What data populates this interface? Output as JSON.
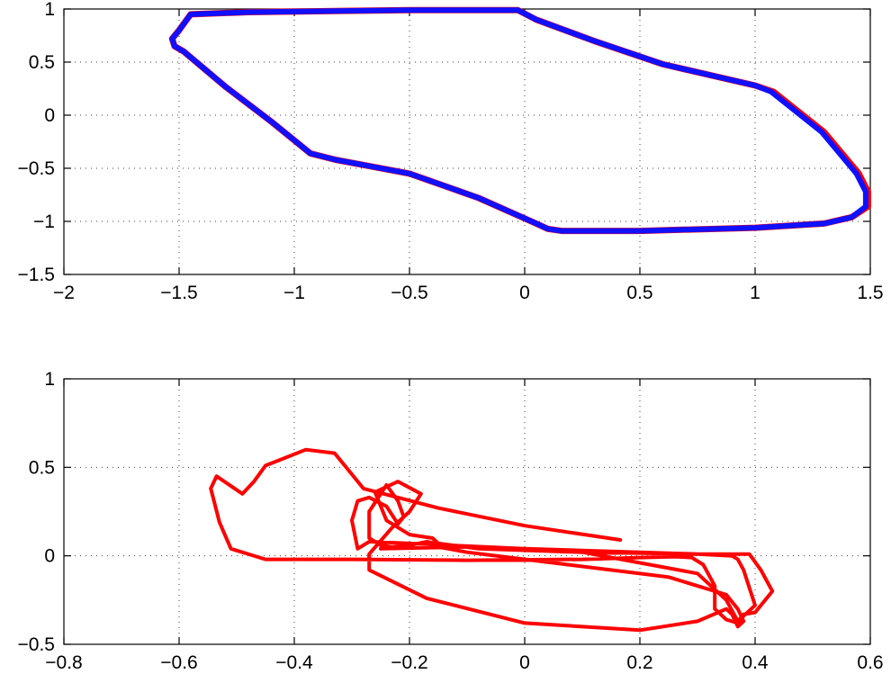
{
  "chart_data": [
    {
      "type": "line",
      "title": "",
      "xlabel": "",
      "ylabel": "",
      "xlim": [
        -2,
        1.5
      ],
      "ylim": [
        -1.5,
        1
      ],
      "xticks": [
        "−2",
        "−1.5",
        "−1",
        "−0.5",
        "0",
        "0.5",
        "1",
        "1.5"
      ],
      "yticks": [
        "−1.5",
        "−1",
        "−0.5",
        "0",
        "0.5",
        "1"
      ],
      "xtick_values": [
        -2,
        -1.5,
        -1,
        -0.5,
        0,
        0.5,
        1,
        1.5
      ],
      "ytick_values": [
        -1.5,
        -1,
        -0.5,
        0,
        0.5,
        1
      ],
      "grid": true,
      "series": [
        {
          "color": "#ff0000",
          "closed": true,
          "x": [
            -1.5,
            -1.53,
            -1.52,
            -1.48,
            -1.3,
            -1.1,
            -0.93,
            -0.82,
            -0.5,
            -0.2,
            0.05,
            0.1,
            0.16,
            0.5,
            1.0,
            1.3,
            1.42,
            1.49,
            1.49,
            1.45,
            1.3,
            1.08,
            1.0,
            0.6,
            0.3,
            0.05,
            -0.03,
            -0.5,
            -1.2,
            -1.45
          ],
          "y": [
            0.8,
            0.72,
            0.65,
            0.6,
            0.27,
            -0.06,
            -0.36,
            -0.42,
            -0.55,
            -0.78,
            -1.02,
            -1.07,
            -1.09,
            -1.09,
            -1.06,
            -1.02,
            -0.96,
            -0.86,
            -0.72,
            -0.55,
            -0.16,
            0.22,
            0.28,
            0.48,
            0.7,
            0.9,
            0.99,
            0.99,
            0.97,
            0.95
          ]
        },
        {
          "color": "#1010ff",
          "closed": true,
          "x": [
            -1.5,
            -1.53,
            -1.52,
            -1.48,
            -1.3,
            -1.1,
            -0.93,
            -0.82,
            -0.5,
            -0.2,
            0.05,
            0.1,
            0.16,
            0.5,
            1.0,
            1.3,
            1.42,
            1.48,
            1.48,
            1.44,
            1.29,
            1.07,
            1.0,
            0.6,
            0.3,
            0.05,
            -0.03,
            -0.5,
            -1.2,
            -1.45
          ],
          "y": [
            0.8,
            0.72,
            0.65,
            0.6,
            0.27,
            -0.06,
            -0.36,
            -0.42,
            -0.55,
            -0.78,
            -1.02,
            -1.07,
            -1.09,
            -1.09,
            -1.06,
            -1.02,
            -0.96,
            -0.86,
            -0.72,
            -0.55,
            -0.16,
            0.22,
            0.28,
            0.48,
            0.7,
            0.9,
            0.99,
            0.99,
            0.97,
            0.95
          ]
        }
      ]
    },
    {
      "type": "line",
      "title": "",
      "xlabel": "",
      "ylabel": "",
      "xlim": [
        -0.8,
        0.6
      ],
      "ylim": [
        -0.5,
        1
      ],
      "xticks": [
        "−0.8",
        "−0.6",
        "−0.4",
        "−0.2",
        "0",
        "0.2",
        "0.4",
        "0.6"
      ],
      "yticks": [
        "−0.5",
        "0",
        "0.5",
        "1"
      ],
      "xtick_values": [
        -0.8,
        -0.6,
        -0.4,
        -0.2,
        0,
        0.2,
        0.4,
        0.6
      ],
      "ytick_values": [
        -0.5,
        0,
        0.5,
        1
      ],
      "grid": true,
      "series": [
        {
          "color": "#ff0000",
          "closed": false,
          "x": [
            0.166,
            0.0,
            -0.15,
            -0.28,
            -0.31,
            -0.33,
            -0.38,
            -0.45,
            -0.47,
            -0.49,
            -0.535,
            -0.545,
            -0.53,
            -0.51,
            -0.45,
            -0.3,
            -0.1,
            0.1,
            0.2,
            0.26,
            0.29,
            0.31,
            0.33,
            0.33,
            0.35,
            0.37,
            0.38,
            0.4,
            0.39,
            0.38,
            0.37,
            0.36,
            0.3,
            0.2,
            0.0,
            -0.2,
            -0.27,
            -0.29,
            -0.3,
            -0.29,
            -0.27,
            -0.24,
            -0.22,
            -0.21,
            -0.22,
            -0.24,
            -0.27,
            -0.27,
            -0.25,
            -0.23,
            -0.2,
            -0.17,
            -0.14,
            -0.15,
            -0.1,
            0.05,
            0.25,
            0.35,
            0.37,
            0.38,
            0.37,
            0.36,
            0.35,
            0.3,
            0.2,
            0.0,
            -0.17,
            -0.27,
            -0.27,
            -0.23,
            -0.2,
            -0.18,
            -0.22,
            -0.26,
            -0.24,
            -0.2,
            -0.16,
            -0.15,
            -0.08,
            0.1,
            0.3,
            0.39,
            0.41,
            0.43,
            0.4,
            0.38,
            0.37,
            0.35,
            0.3,
            0.1,
            -0.1,
            -0.25
          ],
          "y": [
            0.09,
            0.17,
            0.27,
            0.38,
            0.5,
            0.58,
            0.6,
            0.51,
            0.42,
            0.35,
            0.45,
            0.38,
            0.19,
            0.04,
            -0.02,
            -0.02,
            -0.025,
            -0.02,
            -0.01,
            -0.005,
            -0.01,
            -0.05,
            -0.17,
            -0.3,
            -0.36,
            -0.38,
            -0.34,
            -0.28,
            -0.18,
            -0.08,
            -0.02,
            0.0,
            0.01,
            0.02,
            0.04,
            0.07,
            0.08,
            0.04,
            0.2,
            0.31,
            0.33,
            0.28,
            0.18,
            0.22,
            0.31,
            0.4,
            0.25,
            0.1,
            0.06,
            0.05,
            0.06,
            0.08,
            0.06,
            0.05,
            0.02,
            -0.04,
            -0.12,
            -0.22,
            -0.3,
            -0.37,
            -0.4,
            -0.33,
            -0.3,
            -0.37,
            -0.42,
            -0.38,
            -0.24,
            -0.08,
            0.01,
            0.16,
            0.25,
            0.35,
            0.42,
            0.36,
            0.2,
            0.12,
            0.1,
            0.07,
            0.04,
            0.02,
            0.01,
            0.01,
            -0.08,
            -0.2,
            -0.32,
            -0.33,
            -0.37,
            -0.25,
            -0.1,
            0.02,
            0.05,
            0.04
          ]
        }
      ]
    }
  ]
}
